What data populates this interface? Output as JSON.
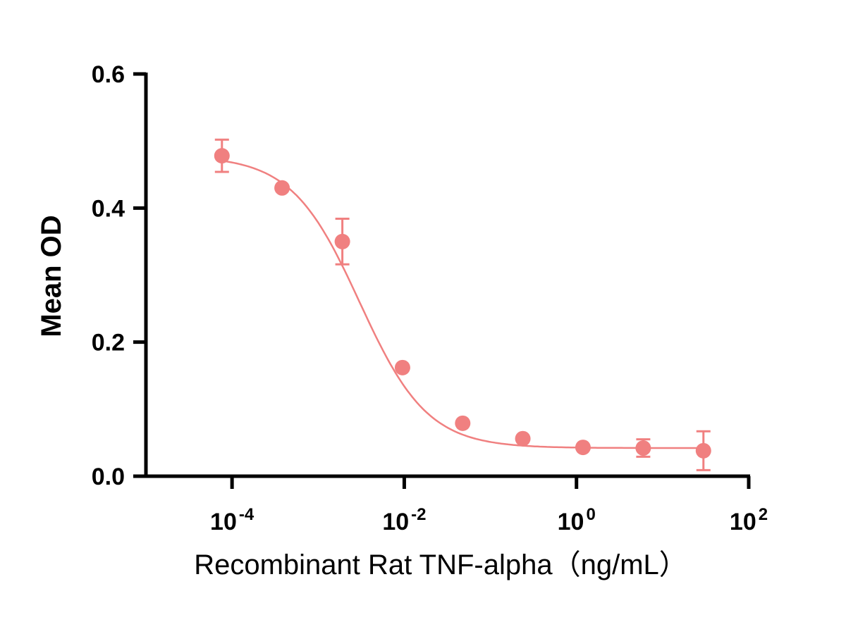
{
  "chart_data": {
    "type": "scatter",
    "title": "",
    "xlabel": "Recombinant Rat TNF-alpha（ng/mL）",
    "ylabel": "Mean OD",
    "x_scale": "log10",
    "xlim": [
      1e-05,
      100
    ],
    "ylim": [
      0,
      0.6
    ],
    "x_ticks": [
      {
        "base": "10",
        "exp": "-4",
        "value": 0.0001
      },
      {
        "base": "10",
        "exp": "-2",
        "value": 0.01
      },
      {
        "base": "10",
        "exp": "0",
        "value": 1
      },
      {
        "base": "10",
        "exp": "2",
        "value": 100
      }
    ],
    "y_ticks": [
      {
        "label": "0.0",
        "value": 0.0
      },
      {
        "label": "0.2",
        "value": 0.2
      },
      {
        "label": "0.4",
        "value": 0.4
      },
      {
        "label": "0.6",
        "value": 0.6
      }
    ],
    "series": [
      {
        "name": "Recombinant Rat TNF-alpha",
        "color": "#f08080",
        "points": [
          {
            "x": 7.63e-05,
            "y": 0.478,
            "err": 0.024
          },
          {
            "x": 0.000381,
            "y": 0.43,
            "err": 0
          },
          {
            "x": 0.00191,
            "y": 0.35,
            "err": 0.034
          },
          {
            "x": 0.00954,
            "y": 0.162,
            "err": 0
          },
          {
            "x": 0.0477,
            "y": 0.079,
            "err": 0
          },
          {
            "x": 0.238,
            "y": 0.056,
            "err": 0
          },
          {
            "x": 1.19,
            "y": 0.043,
            "err": 0
          },
          {
            "x": 5.96,
            "y": 0.042,
            "err": 0.013
          },
          {
            "x": 29.8,
            "y": 0.038,
            "err": 0.029
          }
        ],
        "fit": {
          "model": "4PL",
          "top": 0.478,
          "bottom": 0.042,
          "log_ec50": -2.52,
          "hill": -1.1
        }
      }
    ]
  }
}
